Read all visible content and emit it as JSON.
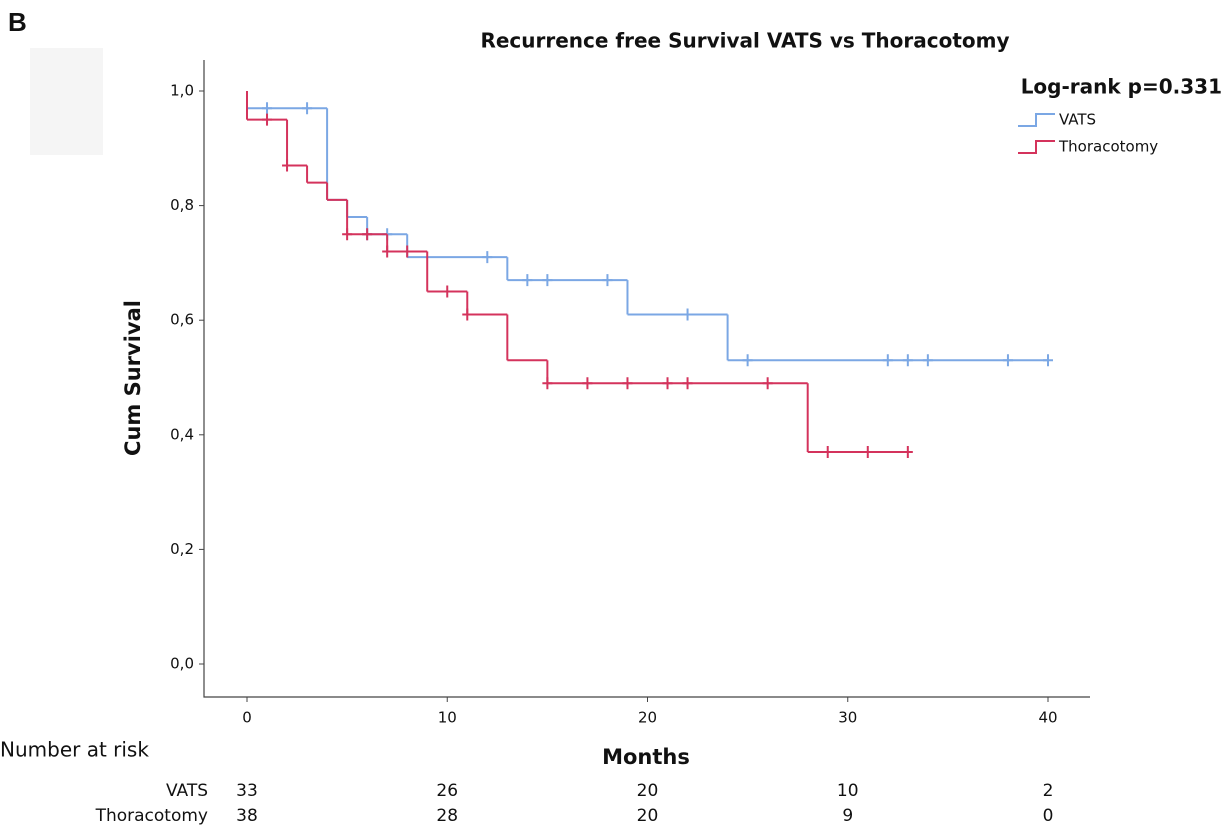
{
  "chart_data": {
    "type": "km",
    "panel_label": "B",
    "title": "Recurrence free Survival VATS vs Thoracotomy",
    "annotation": "Log-rank p=0.331",
    "x_label": "Months",
    "y_label": "Cum Survival",
    "xlim": [
      0,
      40
    ],
    "xticks": [
      0,
      10,
      20,
      30,
      40
    ],
    "ylim": [
      0,
      1
    ],
    "yticks": [
      {
        "value": 0,
        "label": "0,0"
      },
      {
        "value": 0.2,
        "label": "0,2"
      },
      {
        "value": 0.4,
        "label": "0,4"
      },
      {
        "value": 0.6,
        "label": "0,6"
      },
      {
        "value": 0.8,
        "label": "0,8"
      },
      {
        "value": 1,
        "label": "1,0"
      }
    ],
    "series": [
      {
        "name": "VATS",
        "color": "#7ba7e4",
        "x": [
          0,
          0,
          4,
          5,
          6,
          8,
          13,
          19,
          24,
          40
        ],
        "values": [
          1,
          0.97,
          0.81,
          0.78,
          0.75,
          0.71,
          0.67,
          0.61,
          0.53,
          0.53
        ],
        "censor_x": [
          1,
          3,
          6,
          7,
          12,
          14,
          15,
          18,
          22,
          25,
          32,
          33,
          34,
          38,
          40
        ],
        "censor_values": [
          0.97,
          0.97,
          0.75,
          0.75,
          0.71,
          0.67,
          0.67,
          0.67,
          0.61,
          0.53,
          0.53,
          0.53,
          0.53,
          0.53,
          0.53
        ]
      },
      {
        "name": "Thoracotomy",
        "color": "#d4335c",
        "x": [
          0,
          0,
          2,
          3,
          4,
          5,
          7,
          9,
          11,
          13,
          15,
          28,
          33
        ],
        "values": [
          1,
          0.95,
          0.87,
          0.84,
          0.81,
          0.75,
          0.72,
          0.65,
          0.61,
          0.53,
          0.49,
          0.37,
          0.37
        ],
        "censor_x": [
          1,
          2,
          5,
          6,
          7,
          8,
          10,
          11,
          15,
          17,
          19,
          21,
          22,
          26,
          29,
          31,
          33
        ],
        "censor_values": [
          0.95,
          0.87,
          0.75,
          0.75,
          0.72,
          0.72,
          0.65,
          0.61,
          0.49,
          0.49,
          0.49,
          0.49,
          0.49,
          0.49,
          0.37,
          0.37,
          0.37
        ]
      }
    ],
    "risk_table": {
      "title": "Number at risk",
      "rows": [
        {
          "name": "VATS",
          "values": [
            33,
            26,
            20,
            10,
            2
          ]
        },
        {
          "name": "Thoracotomy",
          "values": [
            38,
            28,
            20,
            9,
            0
          ]
        }
      ]
    }
  }
}
